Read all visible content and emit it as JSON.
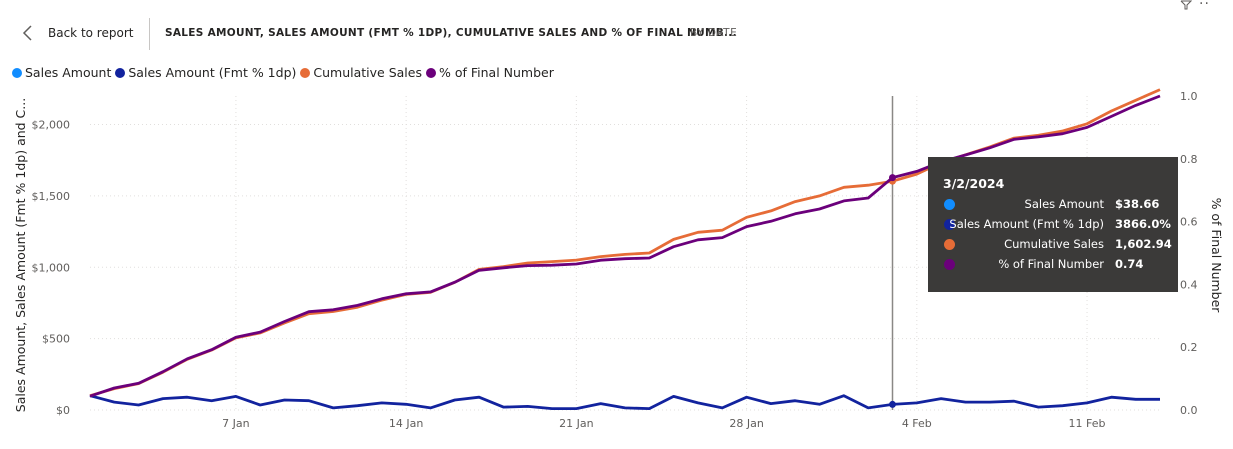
{
  "header": {
    "back_label": "Back to report",
    "title": "SALES AMOUNT, SALES AMOUNT (FMT % 1DP), CUMULATIVE SALES AND % OF FINAL NUMB...",
    "drill_label": "BY DATE"
  },
  "legend": [
    {
      "label": "Sales Amount",
      "color": "#118DFF"
    },
    {
      "label": "Sales Amount (Fmt % 1dp)",
      "color": "#12239E"
    },
    {
      "label": "Cumulative Sales",
      "color": "#E66C37"
    },
    {
      "label": "% of Final Number",
      "color": "#6B007B"
    }
  ],
  "tooltip": {
    "date": "3/2/2024",
    "rows": [
      {
        "label": "Sales Amount",
        "value": "$38.66",
        "color": "#118DFF"
      },
      {
        "label": "Sales Amount (Fmt % 1dp)",
        "value": "3866.0%",
        "color": "#12239E"
      },
      {
        "label": "Cumulative Sales",
        "value": "1,602.94",
        "color": "#E66C37"
      },
      {
        "label": "% of Final Number",
        "value": "0.74",
        "color": "#6B007B"
      }
    ]
  },
  "chart_data": {
    "type": "line",
    "ylabel": "Sales Amount, Sales Amount (Fmt % 1dp) and C...",
    "y2label": "% of Final Number",
    "ylim": [
      0,
      2200
    ],
    "y2lim": [
      0,
      1.0
    ],
    "y_ticks": [
      "$0",
      "$500",
      "$1,000",
      "$1,500",
      "$2,000"
    ],
    "y2_ticks": [
      "0.0",
      "0.2",
      "0.4",
      "0.6",
      "0.8",
      "1.0"
    ],
    "x_ticks": [
      "7 Jan",
      "14 Jan",
      "21 Jan",
      "28 Jan",
      "4 Feb",
      "11 Feb"
    ],
    "x": [
      "2024-01-01",
      "2024-01-02",
      "2024-01-03",
      "2024-01-04",
      "2024-01-05",
      "2024-01-06",
      "2024-01-07",
      "2024-01-08",
      "2024-01-09",
      "2024-01-10",
      "2024-01-11",
      "2024-01-12",
      "2024-01-13",
      "2024-01-14",
      "2024-01-15",
      "2024-01-16",
      "2024-01-17",
      "2024-01-18",
      "2024-01-19",
      "2024-01-20",
      "2024-01-21",
      "2024-01-22",
      "2024-01-23",
      "2024-01-24",
      "2024-01-25",
      "2024-01-26",
      "2024-01-27",
      "2024-01-28",
      "2024-01-29",
      "2024-01-30",
      "2024-01-31",
      "2024-02-01",
      "2024-02-02",
      "2024-02-03",
      "2024-02-04",
      "2024-02-05",
      "2024-02-06",
      "2024-02-07",
      "2024-02-08",
      "2024-02-09",
      "2024-02-10",
      "2024-02-11",
      "2024-02-12",
      "2024-02-13",
      "2024-02-14"
    ],
    "grid": true,
    "legend_position": "top-left",
    "series": [
      {
        "name": "Sales Amount (Fmt % 1dp)",
        "axis": "left",
        "color": "#12239E",
        "values": [
          100,
          55,
          35,
          80,
          90,
          65,
          95,
          35,
          70,
          65,
          15,
          30,
          50,
          40,
          15,
          70,
          90,
          20,
          25,
          10,
          10,
          45,
          15,
          10,
          95,
          50,
          15,
          90,
          45,
          65,
          40,
          100,
          15,
          39,
          50,
          80,
          55,
          55,
          62,
          20,
          30,
          50,
          90,
          75,
          75
        ]
      },
      {
        "name": "Cumulative Sales",
        "axis": "left",
        "color": "#E66C37",
        "values": [
          100,
          150,
          185,
          265,
          355,
          420,
          505,
          540,
          610,
          675,
          690,
          720,
          770,
          810,
          825,
          895,
          985,
          1005,
          1030,
          1040,
          1050,
          1075,
          1090,
          1100,
          1195,
          1245,
          1260,
          1350,
          1395,
          1460,
          1500,
          1560,
          1575,
          1603,
          1653,
          1733,
          1788,
          1843,
          1905,
          1925,
          1955,
          2005,
          2095,
          2170,
          2245
        ]
      },
      {
        "name": "% of Final Number",
        "axis": "right",
        "color": "#6B007B",
        "values": [
          0.044,
          0.07,
          0.085,
          0.122,
          0.163,
          0.192,
          0.232,
          0.248,
          0.282,
          0.313,
          0.319,
          0.333,
          0.354,
          0.37,
          0.376,
          0.407,
          0.445,
          0.453,
          0.46,
          0.461,
          0.465,
          0.477,
          0.482,
          0.484,
          0.52,
          0.542,
          0.549,
          0.584,
          0.601,
          0.625,
          0.64,
          0.666,
          0.675,
          0.74,
          0.76,
          0.79,
          0.812,
          0.835,
          0.862,
          0.87,
          0.88,
          0.9,
          0.935,
          0.97,
          1.0
        ]
      }
    ],
    "hover_index": 33
  }
}
